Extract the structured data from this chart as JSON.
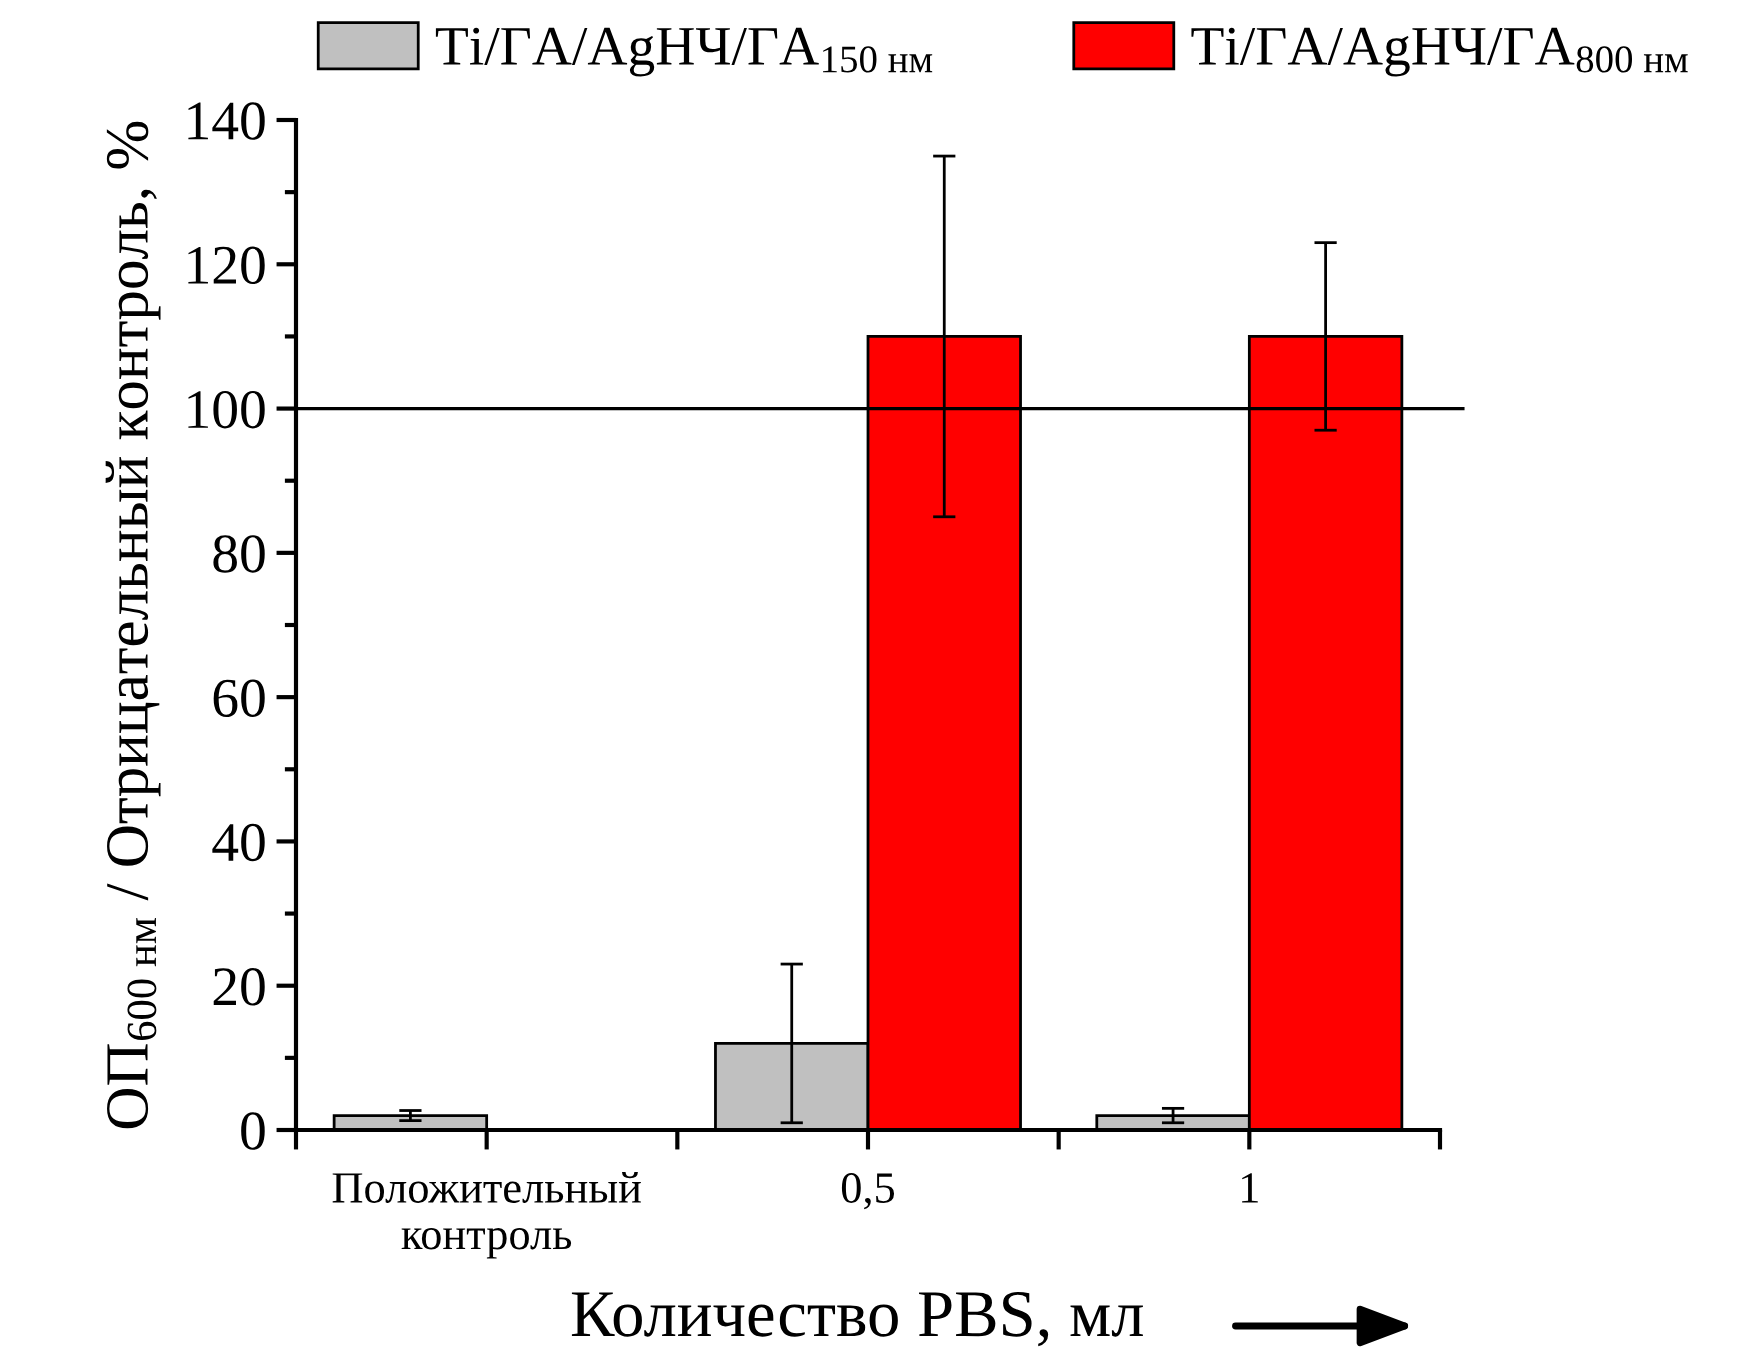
{
  "chart_data": {
    "type": "bar",
    "xlabel": "Количество PBS, мл",
    "ylabel": "ОП$_{600 нм}$ / Отрицательный контроль, %",
    "categories": [
      "Положительный\nконтроль",
      "0,5",
      "1"
    ],
    "series": [
      {
        "name": "Ti/ГА/AgНЧ/ГА$_{150 нм}$",
        "color": "#c0c0c0",
        "values": [
          2,
          12,
          2
        ],
        "errors": [
          0.7,
          11,
          1
        ]
      },
      {
        "name": "Ti/ГА/AgНЧ/ГА$_{800 нм}$",
        "color": "#ff0000",
        "values": [
          null,
          110,
          110
        ],
        "errors": [
          null,
          25,
          13
        ]
      }
    ],
    "ylim": [
      0,
      140
    ],
    "yticks": [
      0,
      20,
      40,
      60,
      80,
      100,
      120,
      140
    ],
    "ref_lines": [
      {
        "axis": "y",
        "value": 100,
        "color": "#000000",
        "line_style": "solid"
      }
    ],
    "grid": false,
    "legend": "top"
  }
}
